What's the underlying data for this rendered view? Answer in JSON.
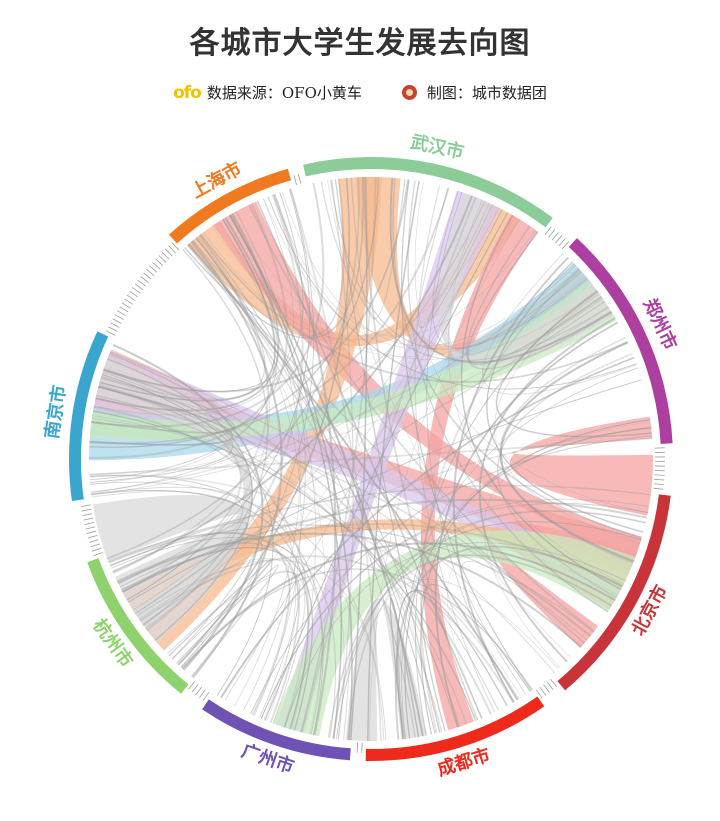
{
  "title": "各城市大学生发展去向图",
  "credits": {
    "source_logo": "ofo",
    "source_text": "数据来源：OFO小黄车",
    "author_text": "制图：城市数据团"
  },
  "chart_data": {
    "type": "chord",
    "groups": [
      {
        "name": "武汉市",
        "color": "#8ccc98",
        "start_deg": 296.0,
        "end_deg": 336.0
      },
      {
        "name": "郑州市",
        "color": "#ad3fa1",
        "start_deg": 345.0,
        "end_deg": 35.0
      },
      {
        "name": "北京市",
        "color": "#c9343a",
        "start_deg": 46.0,
        "end_deg": 99.0
      },
      {
        "name": "成都市",
        "color": "#ee2a1c",
        "start_deg": 102.5,
        "end_deg": 143.0
      },
      {
        "name": "广州市",
        "color": "#6e52b4",
        "start_deg": 148.0,
        "end_deg": 189.0
      },
      {
        "name": "杭州市",
        "color": "#8ed26d",
        "start_deg": 196.0,
        "end_deg": 236.5
      },
      {
        "name": "南京市",
        "color": "#3aa6d0",
        "start_deg": 250.0,
        "end_deg": 291.0
      },
      {
        "name": "上海市",
        "color": "#ef7a1f",
        "start_deg": 211.0,
        "end_deg": 233.0
      }
    ],
    "ribbons": [
      {
        "from": "郑州市",
        "to": "武汉市",
        "color": "#f7b98e"
      },
      {
        "from": "上海市",
        "to": "武汉市",
        "color": "#f7b98e"
      },
      {
        "from": "北京市",
        "to": "南京市",
        "color": "#f4a3a1"
      },
      {
        "from": "上海市",
        "to": "北京市",
        "color": "#f4a3a1"
      },
      {
        "from": "南京市",
        "to": "南京市",
        "color": "#f7b98e"
      },
      {
        "from": "郑州市",
        "to": "郑州市",
        "color": "#f4a3a1"
      },
      {
        "from": "北京市",
        "to": "北京市",
        "color": "#f4a3a1"
      },
      {
        "from": "武汉市",
        "to": "成都市",
        "color": "#f4a3a1"
      },
      {
        "from": "杭州市",
        "to": "武汉市",
        "color": "#f7b98e"
      },
      {
        "from": "南京市",
        "to": "郑州市",
        "color": "#a8d8ea"
      },
      {
        "from": "南京市",
        "to": "北京市",
        "color": "#d9c7ec"
      },
      {
        "from": "广州市",
        "to": "武汉市",
        "color": "#d9c7ec"
      },
      {
        "from": "郑州市",
        "to": "南京市",
        "color": "#c8e9c0"
      },
      {
        "from": "北京市",
        "to": "杭州市",
        "color": "#f7b98e"
      },
      {
        "from": "广州市",
        "to": "北京市",
        "color": "#c8e9c0"
      },
      {
        "from": "南京市",
        "to": "杭州市",
        "color": "#d9d9d9"
      },
      {
        "from": "郑州市",
        "to": "武汉市",
        "color": "#d9d9d9"
      },
      {
        "from": "成都市",
        "to": "成都市",
        "color": "#d9d9d9"
      },
      {
        "from": "杭州市",
        "to": "杭州市",
        "color": "#d9d9d9"
      }
    ]
  }
}
